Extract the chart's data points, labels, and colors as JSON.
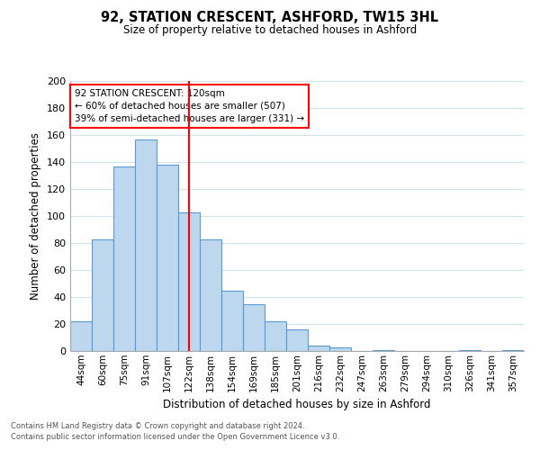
{
  "title1": "92, STATION CRESCENT, ASHFORD, TW15 3HL",
  "title2": "Size of property relative to detached houses in Ashford",
  "xlabel": "Distribution of detached houses by size in Ashford",
  "ylabel": "Number of detached properties",
  "bar_labels": [
    "44sqm",
    "60sqm",
    "75sqm",
    "91sqm",
    "107sqm",
    "122sqm",
    "138sqm",
    "154sqm",
    "169sqm",
    "185sqm",
    "201sqm",
    "216sqm",
    "232sqm",
    "247sqm",
    "263sqm",
    "279sqm",
    "294sqm",
    "310sqm",
    "326sqm",
    "341sqm",
    "357sqm"
  ],
  "bar_heights": [
    22,
    83,
    137,
    157,
    138,
    103,
    83,
    45,
    35,
    22,
    16,
    4,
    3,
    0,
    1,
    0,
    0,
    0,
    1,
    0,
    1
  ],
  "bar_color": "#bdd7ee",
  "bar_edge_color": "#5b9bd5",
  "vline_x_index": 5,
  "vline_color": "red",
  "ylim": [
    0,
    200
  ],
  "yticks": [
    0,
    20,
    40,
    60,
    80,
    100,
    120,
    140,
    160,
    180,
    200
  ],
  "annotation_title": "92 STATION CRESCENT: 120sqm",
  "annotation_line1": "← 60% of detached houses are smaller (507)",
  "annotation_line2": "39% of semi-detached houses are larger (331) →",
  "footnote1": "Contains HM Land Registry data © Crown copyright and database right 2024.",
  "footnote2": "Contains public sector information licensed under the Open Government Licence v3.0.",
  "bg_color": "#ffffff",
  "grid_color": "#d0e4f0"
}
